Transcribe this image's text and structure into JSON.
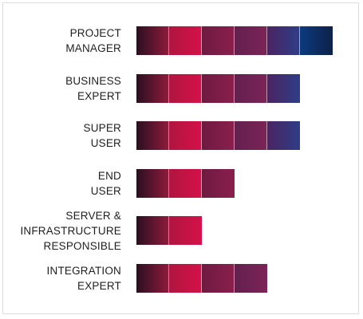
{
  "chart_data": {
    "type": "bar",
    "orientation": "horizontal",
    "stacked": true,
    "title": "",
    "xlabel": "",
    "ylabel": "",
    "grid": false,
    "categories": [
      [
        "PROJECT",
        "MANAGER"
      ],
      [
        "BUSINESS",
        "EXPERT"
      ],
      [
        "SUPER",
        "USER"
      ],
      [
        "END",
        "USER"
      ],
      [
        "SERVER &",
        "INFRASTRUCTURE",
        "RESPONSIBLE"
      ],
      [
        "INTEGRATION",
        "EXPERT"
      ]
    ],
    "values": [
      6,
      5,
      5,
      3,
      2,
      4
    ],
    "max_segments": 6
  },
  "segment_colors": [
    [
      "#2a1020",
      "#8e1a3c"
    ],
    [
      "#b0153f",
      "#d4114a"
    ],
    [
      "#6e1a42",
      "#8a1f4c"
    ],
    [
      "#62204e",
      "#7d2358"
    ],
    [
      "#4a2462",
      "#2e3d86"
    ],
    [
      "#0c3a7e",
      "#0d2148"
    ]
  ]
}
